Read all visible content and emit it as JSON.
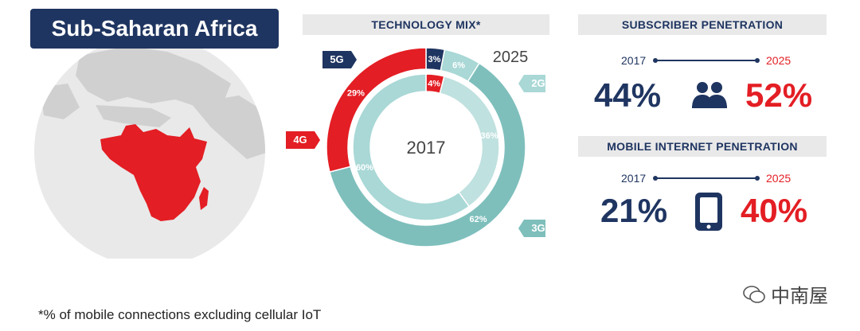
{
  "region": {
    "title": "Sub-Saharan Africa"
  },
  "chart_data": [
    {
      "type": "pie",
      "title": "TECHNOLOGY MIX*",
      "rings": [
        {
          "year": "2025",
          "slices": [
            {
              "label": "5G",
              "value": 3,
              "display": "3%",
              "color": "#1f3561"
            },
            {
              "label": "2G",
              "value": 6,
              "display": "6%",
              "color": "#a9d8d6"
            },
            {
              "label": "3G",
              "value": 62,
              "display": "62%",
              "color": "#7ebfbc"
            },
            {
              "label": "4G",
              "value": 29,
              "display": "29%",
              "color": "#e31e24"
            }
          ]
        },
        {
          "year": "2017",
          "slices": [
            {
              "label": "4G",
              "value": 4,
              "display": "4%",
              "color": "#e31e24"
            },
            {
              "label": "2G",
              "value": 36,
              "display": "36%",
              "color": "#bfe1df"
            },
            {
              "label": "3G",
              "value": 60,
              "display": "60%",
              "color": "#a9d8d6"
            }
          ]
        }
      ],
      "legend": [
        {
          "label": "5G",
          "color": "#1f3561"
        },
        {
          "label": "2G",
          "color": "#a9d8d6"
        },
        {
          "label": "4G",
          "color": "#e31e24"
        },
        {
          "label": "3G",
          "color": "#7ebfbc"
        }
      ]
    }
  ],
  "subscriber": {
    "title": "SUBSCRIBER PENETRATION",
    "year_from": "2017",
    "year_to": "2025",
    "value_from": "44%",
    "value_to": "52%",
    "icon": "people-icon"
  },
  "mobile_internet": {
    "title": "MOBILE INTERNET PENETRATION",
    "year_from": "2017",
    "year_to": "2025",
    "value_from": "21%",
    "value_to": "40%",
    "icon": "smartphone-icon"
  },
  "footnote": "*% of mobile connections excluding cellular IoT",
  "watermark": "中南屋",
  "colors": {
    "navy": "#1f3561",
    "red": "#e31e24",
    "teal": "#7ebfbc",
    "light_teal": "#a9d8d6",
    "globe": "#e8e8e8"
  }
}
